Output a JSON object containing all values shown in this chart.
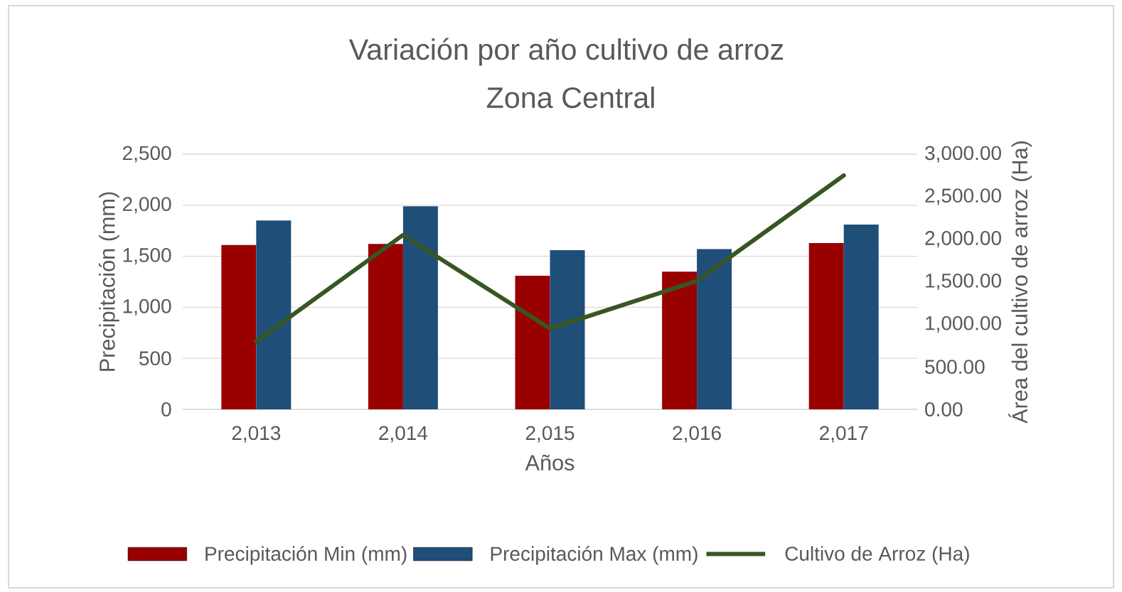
{
  "chart_data": {
    "type": "bar",
    "title": "Variación por año cultivo de arroz",
    "subtitle": "Zona Central",
    "xlabel": "Años",
    "ylabel": "Precipitación (mm)",
    "y2label": "Área del cultivo de arroz (Ha)",
    "categories": [
      "2,013",
      "2,014",
      "2,015",
      "2,016",
      "2,017"
    ],
    "series": [
      {
        "name": "Precipitación Min (mm)",
        "color": "#990000",
        "values": [
          1610,
          1620,
          1310,
          1350,
          1630
        ]
      },
      {
        "name": "Precipitación Max (mm)",
        "color": "#1f4e79",
        "values": [
          1850,
          1990,
          1560,
          1570,
          1810
        ]
      },
      {
        "name": "Cultivo de Arroz (Ha)",
        "type": "line",
        "axis": "y2",
        "color": "#375623",
        "values": [
          800,
          2050,
          950,
          1510,
          2750
        ]
      }
    ],
    "ylim": [
      0,
      2500
    ],
    "yticks": [
      0,
      500,
      {
        "value": 1000,
        "label": "1,000"
      },
      {
        "value": 1500,
        "label": "1,500"
      },
      {
        "value": 2000,
        "label": "2,000"
      },
      {
        "value": 2500,
        "label": "2,500"
      }
    ],
    "y2lim": [
      0,
      3000
    ],
    "y2ticks": [
      {
        "value": 0,
        "label": "0.00"
      },
      {
        "value": 500,
        "label": "500.00"
      },
      {
        "value": 1000,
        "label": "1,000.00"
      },
      {
        "value": 1500,
        "label": "1,500.00"
      },
      {
        "value": 2000,
        "label": "2,000.00"
      },
      {
        "value": 2500,
        "label": "2,500.00"
      },
      {
        "value": 3000,
        "label": "3,000.00"
      }
    ],
    "grid": "y",
    "legend": "bottom",
    "marker": "none"
  }
}
